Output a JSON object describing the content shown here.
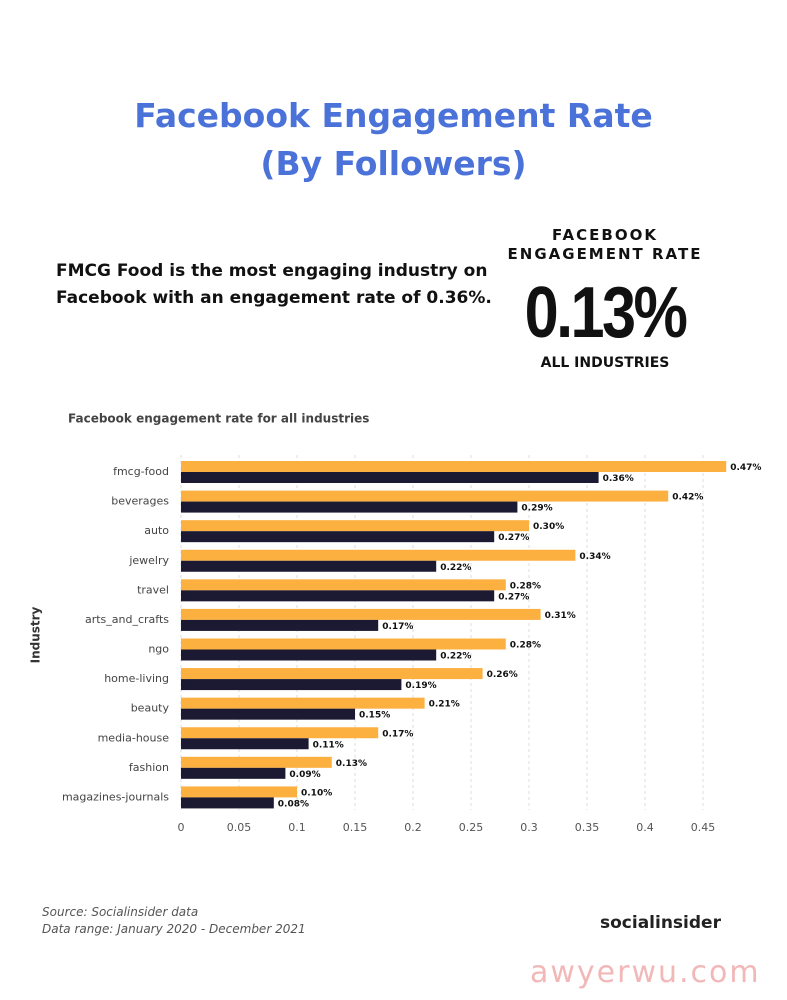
{
  "header": {
    "title_lines": [
      "Facebook Engagement Rate",
      "(By Followers)"
    ],
    "description_lines": [
      "FMCG Food is the most engaging industry on",
      "Facebook with an engagement rate of 0.36%."
    ]
  },
  "stat": {
    "label_lines": [
      "FACEBOOK",
      "ENGAGEMENT RATE"
    ],
    "value": "0.13%",
    "sublabel": "ALL INDUSTRIES"
  },
  "chart_data": {
    "type": "bar",
    "orientation": "horizontal",
    "title": "Facebook engagement rate for all industries",
    "ylabel": "Industry",
    "categories": [
      "fmcg-food",
      "beverages",
      "auto",
      "jewelry",
      "travel",
      "arts_and_crafts",
      "ngo",
      "home-living",
      "beauty",
      "media-house",
      "fashion",
      "magazines-journals"
    ],
    "series": [
      {
        "color": "#fbb040",
        "values": [
          0.47,
          0.42,
          0.3,
          0.34,
          0.28,
          0.31,
          0.28,
          0.26,
          0.21,
          0.17,
          0.13,
          0.1
        ],
        "value_labels": [
          "0.47%",
          "0.42%",
          "0.30%",
          "0.34%",
          "0.28%",
          "0.31%",
          "0.28%",
          "0.26%",
          "0.21%",
          "0.17%",
          "0.13%",
          "0.10%"
        ]
      },
      {
        "color": "#1c1a33",
        "values": [
          0.36,
          0.29,
          0.27,
          0.22,
          0.27,
          0.17,
          0.22,
          0.19,
          0.15,
          0.11,
          0.09,
          0.08
        ],
        "value_labels": [
          "0.36%",
          "0.29%",
          "0.27%",
          "0.22%",
          "0.27%",
          "0.17%",
          "0.22%",
          "0.19%",
          "0.15%",
          "0.11%",
          "0.09%",
          "0.08%"
        ]
      }
    ],
    "xlim": [
      0,
      0.475
    ],
    "xticks": [
      0,
      0.05,
      0.1,
      0.15,
      0.2,
      0.25,
      0.3,
      0.35,
      0.4,
      0.45
    ],
    "grid": true
  },
  "footer": {
    "source_lines": [
      "Source: Socialinsider data",
      "Data range: January 2020 - December 2021"
    ],
    "logo": "socialinsider",
    "watermark": "awyerwu.com"
  }
}
